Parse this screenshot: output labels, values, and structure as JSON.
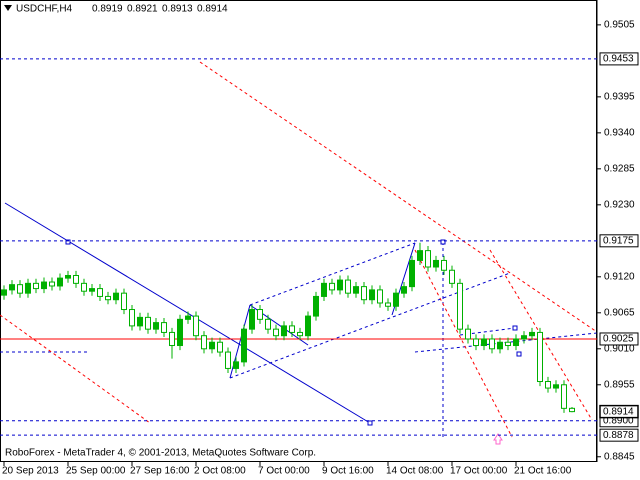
{
  "chart_data": {
    "type": "candlestick",
    "symbol": "USDCHF,H4",
    "header_ohlc": [
      0.8919,
      0.8921,
      0.8913,
      0.8914
    ],
    "footer": "RoboForex - MetaTrader 4, © 2001-2013, MetaQuotes Software Corp.",
    "categories": [
      "20 Sep 2013",
      null,
      null,
      null,
      null,
      null,
      null,
      null,
      "25 Sep 00:00",
      null,
      null,
      null,
      null,
      null,
      null,
      null,
      "27 Sep 16:00",
      null,
      null,
      null,
      null,
      null,
      null,
      null,
      "2 Oct 08:00",
      null,
      null,
      null,
      null,
      null,
      null,
      null,
      "7 Oct 00:00",
      null,
      null,
      null,
      null,
      null,
      null,
      null,
      "9 Oct 16:00",
      null,
      null,
      null,
      null,
      null,
      null,
      null,
      "14 Oct 08:00",
      null,
      null,
      null,
      null,
      null,
      null,
      null,
      "17 Oct 00:00",
      null,
      null,
      null,
      null,
      null,
      null,
      null,
      "21 Oct 16:00",
      null,
      null,
      null,
      null,
      null,
      null,
      null
    ],
    "open": [
      0.9092,
      0.91,
      0.9108,
      0.9095,
      0.911,
      0.9102,
      0.9112,
      0.9106,
      0.9118,
      0.9122,
      0.911,
      0.9098,
      0.9102,
      0.909,
      0.9085,
      0.9095,
      0.907,
      0.9045,
      0.9058,
      0.904,
      0.905,
      0.9035,
      0.9015,
      0.9055,
      0.906,
      0.903,
      0.901,
      0.902,
      0.9005,
      0.898,
      0.899,
      0.904,
      0.907,
      0.9055,
      0.904,
      0.903,
      0.9045,
      0.9035,
      0.903,
      0.906,
      0.909,
      0.911,
      0.91,
      0.9115,
      0.9095,
      0.9105,
      0.9085,
      0.91,
      0.908,
      0.9075,
      0.9095,
      0.9105,
      0.9145,
      0.916,
      0.9135,
      0.9145,
      0.913,
      0.911,
      0.904,
      0.9025,
      0.9015,
      0.9025,
      0.901,
      0.902,
      0.9015,
      0.9025,
      0.903,
      0.9035,
      0.896,
      0.895,
      0.8955,
      0.8919
    ],
    "high": [
      0.9107,
      0.9115,
      0.9115,
      0.9117,
      0.9117,
      0.9119,
      0.9119,
      0.9125,
      0.9129,
      0.9129,
      0.9117,
      0.9109,
      0.9109,
      0.9097,
      0.9102,
      0.9102,
      0.9077,
      0.9065,
      0.9065,
      0.9057,
      0.9057,
      0.9042,
      0.9062,
      0.9067,
      0.9067,
      0.9037,
      0.9027,
      0.9027,
      0.9012,
      0.8997,
      0.9047,
      0.9077,
      0.9077,
      0.9062,
      0.9047,
      0.9052,
      0.9052,
      0.9042,
      0.9067,
      0.9097,
      0.9117,
      0.9117,
      0.9122,
      0.9122,
      0.9112,
      0.9112,
      0.9107,
      0.9107,
      0.9087,
      0.9102,
      0.9112,
      0.9152,
      0.9172,
      0.9167,
      0.9152,
      0.9152,
      0.9137,
      0.9117,
      0.9047,
      0.9032,
      0.9032,
      0.9032,
      0.9027,
      0.9027,
      0.9032,
      0.9037,
      0.9042,
      0.9042,
      0.8967,
      0.8962,
      0.8962,
      0.8921
    ],
    "low": [
      0.9085,
      0.9093,
      0.9088,
      0.9088,
      0.9095,
      0.9095,
      0.9099,
      0.9099,
      0.9111,
      0.9103,
      0.9091,
      0.9091,
      0.9083,
      0.9078,
      0.9078,
      0.9063,
      0.9038,
      0.9038,
      0.9033,
      0.9033,
      0.9028,
      0.8995,
      0.9008,
      0.9048,
      0.9023,
      0.9003,
      0.9003,
      0.8998,
      0.8973,
      0.8973,
      0.8983,
      0.9033,
      0.9048,
      0.9033,
      0.9023,
      0.9023,
      0.9028,
      0.9023,
      0.9023,
      0.9053,
      0.9083,
      0.9093,
      0.9093,
      0.9088,
      0.9088,
      0.9078,
      0.9078,
      0.9073,
      0.9068,
      0.9068,
      0.9088,
      0.9098,
      0.9138,
      0.9128,
      0.9128,
      0.9123,
      0.9103,
      0.9033,
      0.9018,
      0.9008,
      0.9008,
      0.9003,
      0.9003,
      0.9008,
      0.9008,
      0.9018,
      0.9023,
      0.8953,
      0.8943,
      0.8943,
      0.8912,
      0.8913
    ],
    "close": [
      0.91,
      0.9108,
      0.9095,
      0.911,
      0.9102,
      0.9112,
      0.9106,
      0.9118,
      0.9122,
      0.911,
      0.9098,
      0.9102,
      0.909,
      0.9085,
      0.9095,
      0.907,
      0.9045,
      0.9058,
      0.904,
      0.905,
      0.9035,
      0.9015,
      0.9055,
      0.906,
      0.903,
      0.901,
      0.902,
      0.9005,
      0.898,
      0.899,
      0.904,
      0.907,
      0.9055,
      0.904,
      0.903,
      0.9045,
      0.9035,
      0.903,
      0.906,
      0.909,
      0.911,
      0.91,
      0.9115,
      0.9095,
      0.9105,
      0.9085,
      0.91,
      0.908,
      0.9075,
      0.9095,
      0.9105,
      0.9145,
      0.916,
      0.9135,
      0.9145,
      0.913,
      0.911,
      0.904,
      0.9025,
      0.9015,
      0.9025,
      0.901,
      0.902,
      0.9015,
      0.9025,
      0.903,
      0.9035,
      0.896,
      0.895,
      0.8955,
      0.8919,
      0.8914
    ],
    "up_color": "#00b000",
    "down_color": "#ffffff",
    "ylim": [
      0.8837,
      0.9543
    ],
    "yticks": [
      0.9505,
      0.9395,
      {
        "value": 0.934,
        "label": "0.9340"
      },
      0.9285,
      {
        "value": 0.923,
        "label": "0.9230"
      },
      {
        "value": 0.912,
        "label": "0.9120"
      },
      0.9065,
      {
        "value": 0.901,
        "label": "0.9010"
      },
      0.8955,
      0.8845
    ],
    "levels": [
      {
        "value": 0.9453,
        "color": "#0000cc",
        "style": "dashed"
      },
      {
        "value": 0.9175,
        "color": "#0000cc",
        "style": "dashed"
      },
      {
        "value": 0.9025,
        "color": "#ff0000",
        "style": "solid"
      },
      {
        "value": 0.89,
        "label": "0.8900",
        "color": "#0000cc",
        "style": "dashed"
      },
      {
        "value": 0.8878,
        "color": "#0000cc",
        "style": "dashed"
      }
    ],
    "last_price": 0.8914
  }
}
